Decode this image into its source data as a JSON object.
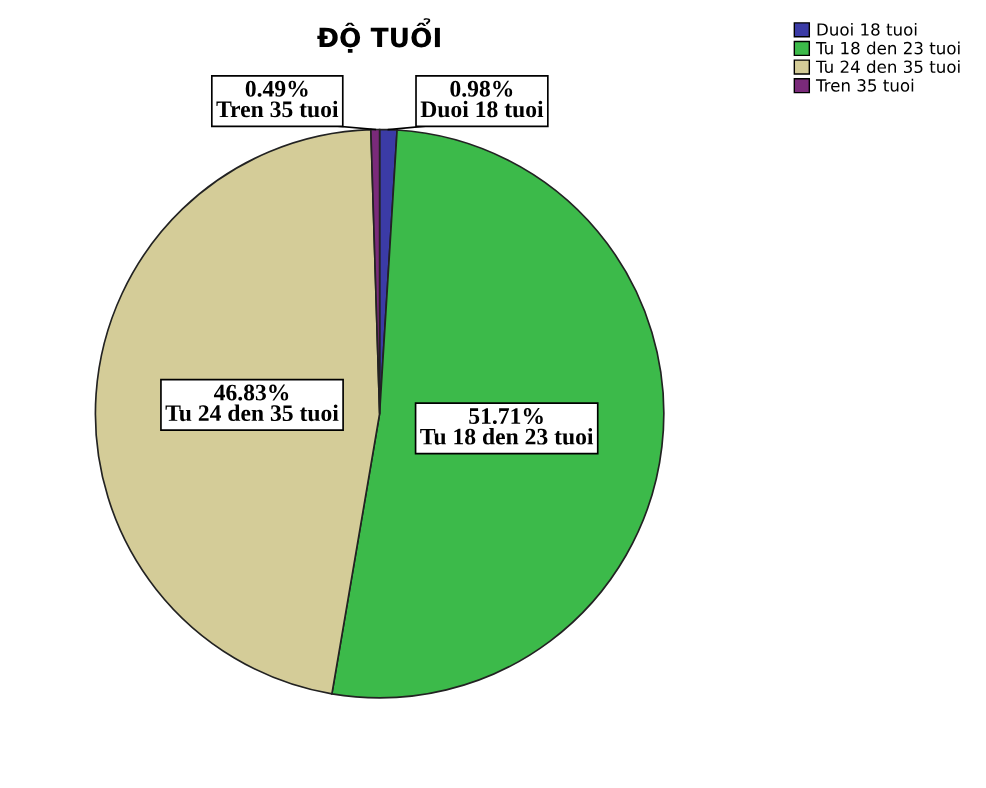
{
  "chart_data": {
    "type": "pie",
    "title": "ĐỘ TUỔI",
    "categories": [
      "Duoi 18 tuoi",
      "Tu 18 den 23 tuoi",
      "Tu 24 den 35 tuoi",
      "Tren 35 tuoi"
    ],
    "values": [
      0.98,
      51.71,
      46.83,
      0.49
    ],
    "colors": [
      "#3b3ba6",
      "#3cba4a",
      "#d4cc98",
      "#7a2a7a"
    ],
    "value_labels": [
      "0.98%",
      "51.71%",
      "46.83%",
      "0.49%"
    ],
    "legend": "top right"
  }
}
